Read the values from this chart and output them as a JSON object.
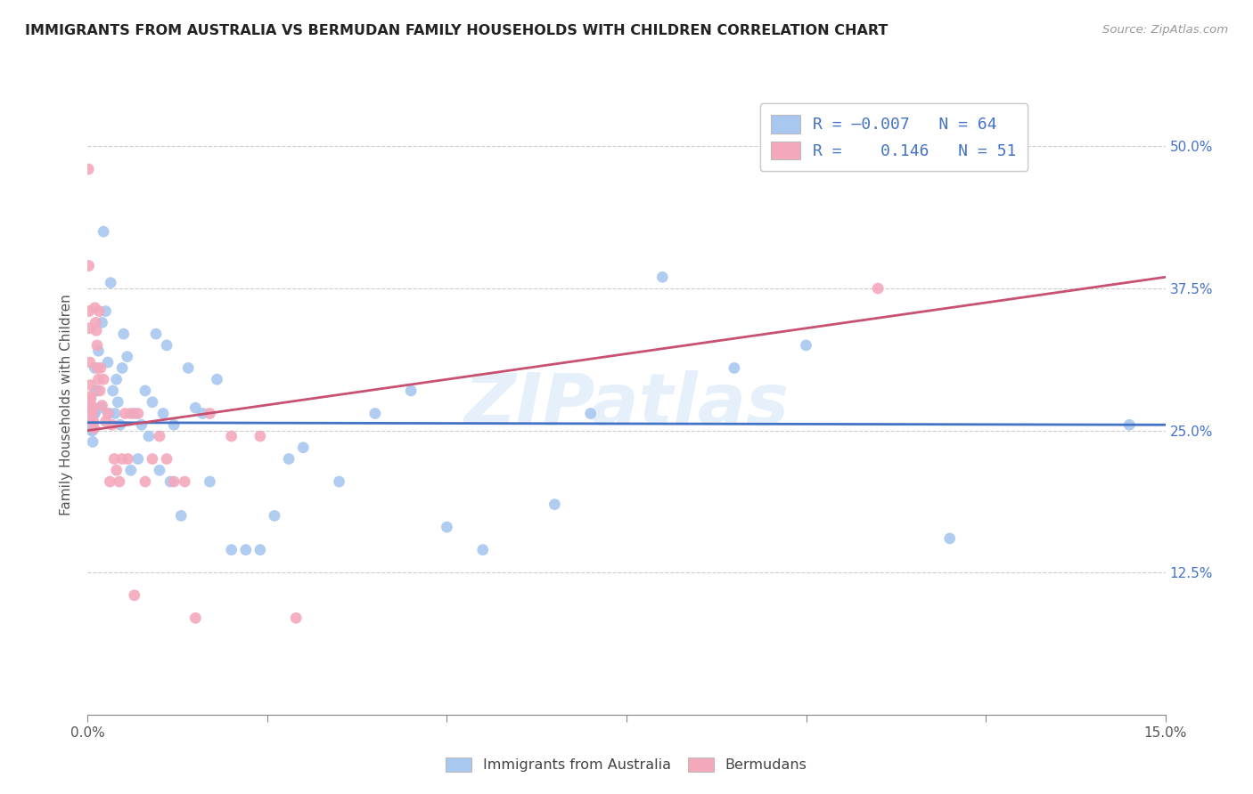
{
  "title": "IMMIGRANTS FROM AUSTRALIA VS BERMUDAN FAMILY HOUSEHOLDS WITH CHILDREN CORRELATION CHART",
  "source": "Source: ZipAtlas.com",
  "ylabel": "Family Households with Children",
  "yticks": [
    0.0,
    0.125,
    0.25,
    0.375,
    0.5
  ],
  "ytick_labels_right": [
    "",
    "12.5%",
    "25.0%",
    "37.5%",
    "50.0%"
  ],
  "xlim": [
    0.0,
    0.15
  ],
  "ylim": [
    0.0,
    0.545
  ],
  "blue_color": "#A8C8F0",
  "pink_color": "#F4A8BC",
  "blue_line_color": "#4472C4",
  "pink_line_color": "#C85070",
  "legend_text_color": "#4472C4",
  "watermark": "ZIPatlas",
  "blue_scatter_x": [
    0.0008,
    0.001,
    0.001,
    0.0012,
    0.0005,
    0.0005,
    0.0006,
    0.0007,
    0.0007,
    0.0009,
    0.0012,
    0.0015,
    0.0018,
    0.002,
    0.0022,
    0.0025,
    0.0028,
    0.003,
    0.0032,
    0.0035,
    0.0038,
    0.004,
    0.0042,
    0.0045,
    0.0048,
    0.005,
    0.0055,
    0.006,
    0.0065,
    0.007,
    0.0075,
    0.008,
    0.0085,
    0.009,
    0.0095,
    0.01,
    0.0105,
    0.011,
    0.0115,
    0.012,
    0.013,
    0.014,
    0.015,
    0.016,
    0.017,
    0.018,
    0.02,
    0.022,
    0.024,
    0.026,
    0.028,
    0.03,
    0.035,
    0.04,
    0.045,
    0.05,
    0.055,
    0.065,
    0.07,
    0.08,
    0.09,
    0.1,
    0.12,
    0.145
  ],
  "blue_scatter_y": [
    0.27,
    0.265,
    0.305,
    0.285,
    0.25,
    0.26,
    0.255,
    0.25,
    0.24,
    0.265,
    0.285,
    0.32,
    0.27,
    0.345,
    0.425,
    0.355,
    0.31,
    0.265,
    0.38,
    0.285,
    0.265,
    0.295,
    0.275,
    0.255,
    0.305,
    0.335,
    0.315,
    0.215,
    0.265,
    0.225,
    0.255,
    0.285,
    0.245,
    0.275,
    0.335,
    0.215,
    0.265,
    0.325,
    0.205,
    0.255,
    0.175,
    0.305,
    0.27,
    0.265,
    0.205,
    0.295,
    0.145,
    0.145,
    0.145,
    0.175,
    0.225,
    0.235,
    0.205,
    0.265,
    0.285,
    0.165,
    0.145,
    0.185,
    0.265,
    0.385,
    0.305,
    0.325,
    0.155,
    0.255
  ],
  "pink_scatter_x": [
    0.0001,
    0.00015,
    0.0002,
    0.00025,
    0.0003,
    0.00035,
    0.0004,
    0.00045,
    0.0005,
    0.00055,
    0.0006,
    0.00065,
    0.0007,
    0.0008,
    0.0009,
    0.001,
    0.0011,
    0.0012,
    0.0013,
    0.0014,
    0.0015,
    0.0016,
    0.0017,
    0.0018,
    0.002,
    0.0022,
    0.0025,
    0.0028,
    0.0031,
    0.0034,
    0.0037,
    0.004,
    0.0044,
    0.0048,
    0.0052,
    0.0056,
    0.006,
    0.0065,
    0.007,
    0.008,
    0.009,
    0.01,
    0.011,
    0.012,
    0.0135,
    0.015,
    0.017,
    0.02,
    0.024,
    0.029,
    0.11
  ],
  "pink_scatter_y": [
    0.48,
    0.395,
    0.355,
    0.34,
    0.31,
    0.29,
    0.28,
    0.278,
    0.272,
    0.268,
    0.268,
    0.265,
    0.258,
    0.258,
    0.252,
    0.358,
    0.345,
    0.338,
    0.325,
    0.305,
    0.295,
    0.355,
    0.285,
    0.305,
    0.272,
    0.295,
    0.258,
    0.265,
    0.205,
    0.255,
    0.225,
    0.215,
    0.205,
    0.225,
    0.265,
    0.225,
    0.265,
    0.105,
    0.265,
    0.205,
    0.225,
    0.245,
    0.225,
    0.205,
    0.205,
    0.085,
    0.265,
    0.245,
    0.245,
    0.085,
    0.375
  ],
  "blue_trend_x": [
    0.0,
    0.15
  ],
  "blue_trend_y": [
    0.257,
    0.255
  ],
  "pink_trend_x": [
    0.0,
    0.15
  ],
  "pink_trend_y": [
    0.25,
    0.385
  ],
  "xtick_positions": [
    0.0,
    0.025,
    0.05,
    0.075,
    0.1,
    0.125,
    0.15
  ],
  "bottom_legend_labels": [
    "Immigrants from Australia",
    "Bermudans"
  ]
}
